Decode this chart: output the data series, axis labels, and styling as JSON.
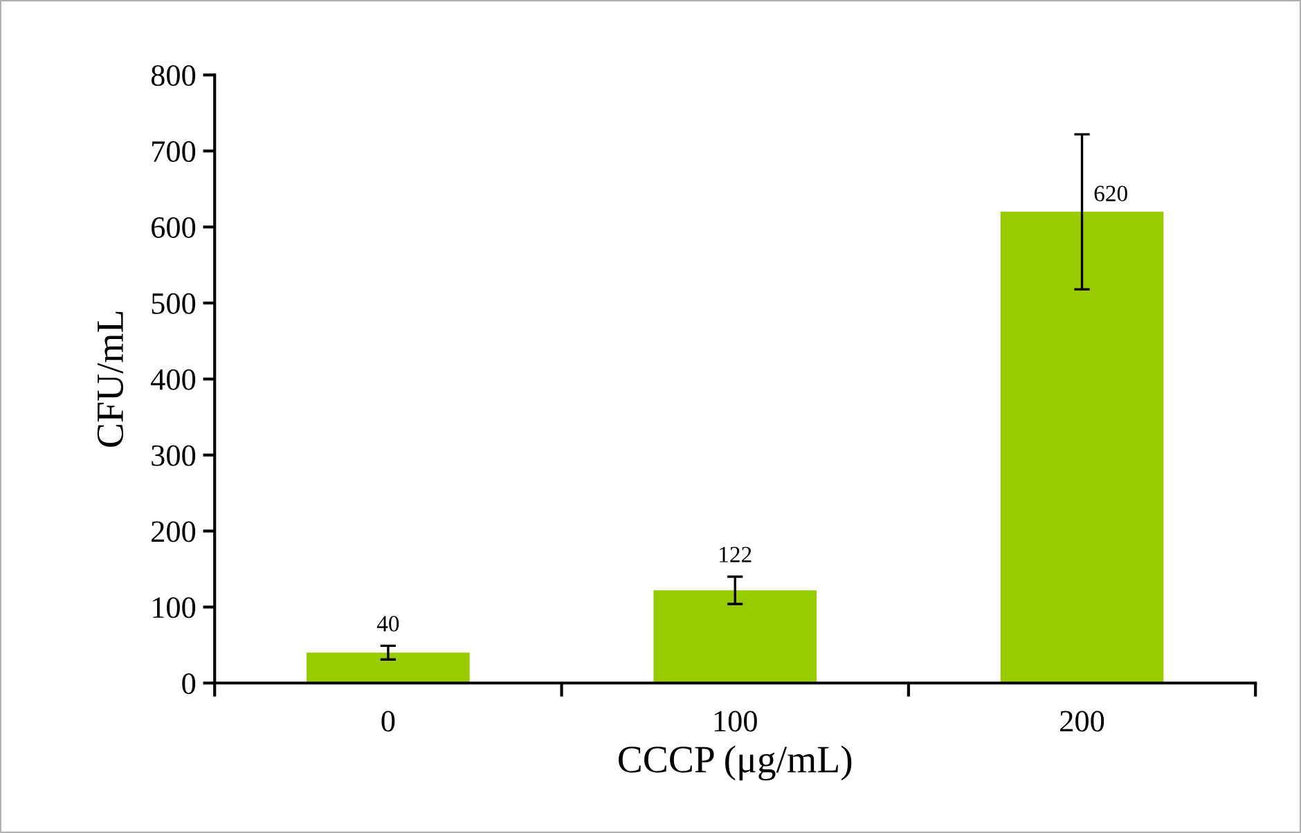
{
  "chart_data": {
    "type": "bar",
    "xlabel": "CCCP (μg/mL)",
    "ylabel": "CFU/mL",
    "categories": [
      "0",
      "100",
      "200"
    ],
    "values": [
      40,
      122,
      620
    ],
    "errors": [
      9,
      18,
      102
    ],
    "color": "#99cc00",
    "ylim": [
      0,
      800
    ],
    "yticks": [
      0,
      100,
      200,
      300,
      400,
      500,
      600,
      700,
      800
    ],
    "data_labels": true,
    "grid": false,
    "legend": false
  }
}
